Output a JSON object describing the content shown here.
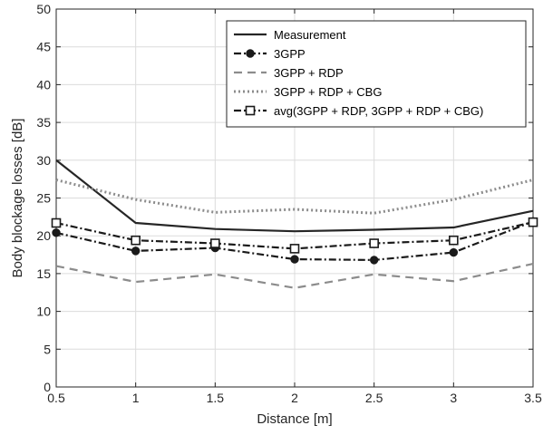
{
  "chart_data": {
    "type": "line",
    "xlabel": "Distance [m]",
    "ylabel": "Body blockage losses [dB]",
    "xlim": [
      0.5,
      3.5
    ],
    "ylim": [
      0,
      50
    ],
    "x_ticks": [
      "0.5",
      "1",
      "1.5",
      "2",
      "2.5",
      "3",
      "3.5"
    ],
    "y_ticks": [
      "0",
      "5",
      "10",
      "15",
      "20",
      "25",
      "30",
      "35",
      "40",
      "45",
      "50"
    ],
    "grid": true,
    "legend_position": "top-right",
    "x": [
      0.5,
      1,
      1.5,
      2,
      2.5,
      3,
      3.5
    ],
    "series": [
      {
        "name": "Measurement",
        "values": [
          30.0,
          21.7,
          20.9,
          20.6,
          20.8,
          21.1,
          23.3
        ],
        "color": "#262626",
        "style": "solid",
        "marker": "none"
      },
      {
        "name": "3GPP",
        "values": [
          20.4,
          18.0,
          18.4,
          16.9,
          16.8,
          17.8,
          21.9
        ],
        "color": "#1a1a1a",
        "style": "dashdot",
        "marker": "circle"
      },
      {
        "name": "3GPP + RDP",
        "values": [
          16.0,
          13.9,
          14.9,
          13.1,
          14.9,
          14.0,
          16.3
        ],
        "color": "#8c8c8c",
        "style": "dashed",
        "marker": "none"
      },
      {
        "name": "3GPP + RDP + CBG",
        "values": [
          27.4,
          24.8,
          23.1,
          23.5,
          23.0,
          24.8,
          27.4
        ],
        "color": "#8c8c8c",
        "style": "dotted",
        "marker": "none"
      },
      {
        "name": "avg(3GPP + RDP, 3GPP + RDP + CBG)",
        "values": [
          21.7,
          19.4,
          19.0,
          18.3,
          19.0,
          19.4,
          21.8
        ],
        "color": "#1a1a1a",
        "style": "dashdot",
        "marker": "square"
      }
    ]
  }
}
